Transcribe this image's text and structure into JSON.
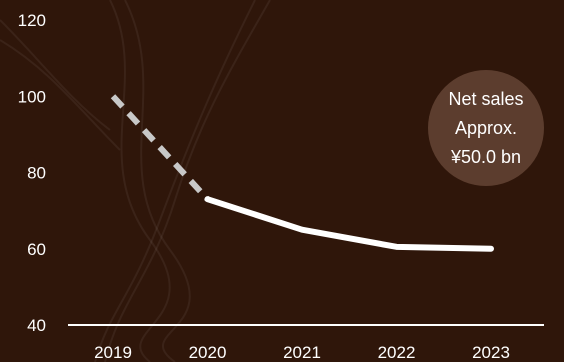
{
  "chart_data": {
    "type": "line",
    "categories": [
      "2019",
      "2020",
      "2021",
      "2022",
      "2023"
    ],
    "series": [
      {
        "values": [
          100,
          73,
          65,
          60.5,
          60
        ],
        "style_note": "dashed segment 2019-2020, solid afterwards"
      }
    ],
    "ylim": [
      40,
      120
    ],
    "yticks": [
      40,
      60,
      80,
      100,
      120
    ],
    "grid": false,
    "colors": {
      "background": "#2f160a",
      "line": "#ffffff",
      "dashed_line": "#c8c8c8",
      "badge": "#5c3d2e",
      "axis": "#ffffff"
    }
  },
  "badge": {
    "line1": "Net sales",
    "line2": "Approx.",
    "line3": "¥50.0 bn"
  }
}
